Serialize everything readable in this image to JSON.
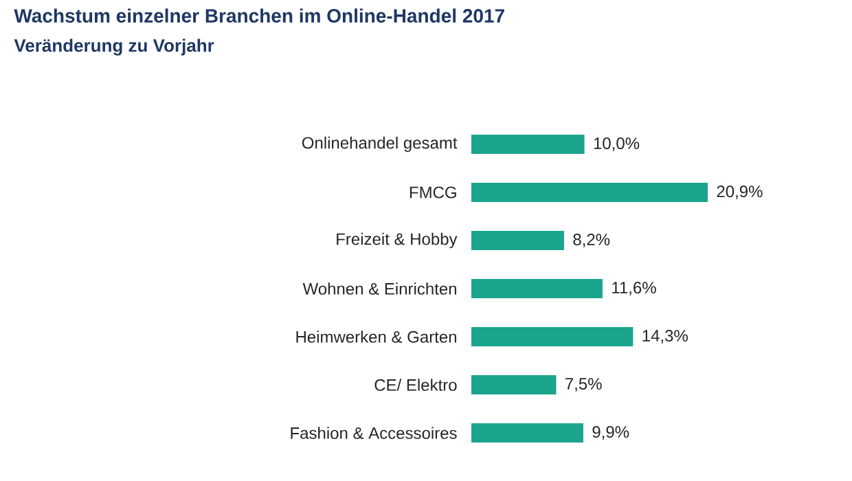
{
  "chart_data": {
    "type": "bar",
    "orientation": "horizontal",
    "title": "Wachstum einzelner Branchen im Online-Handel 2017",
    "subtitle": "Veränderung zu Vorjahr",
    "categories": [
      "Onlinehandel gesamt",
      "FMCG",
      "Freizeit & Hobby",
      "Wohnen &  Einrichten",
      "Heimwerken & Garten",
      "CE/ Elektro",
      "Fashion & Accessoires"
    ],
    "values": [
      10.0,
      20.9,
      8.2,
      11.6,
      14.3,
      7.5,
      9.9
    ],
    "value_labels": [
      "10,0%",
      "20,9%",
      "8,2%",
      "11,6%",
      "14,3%",
      "7,5%",
      "9,9%"
    ],
    "color": "#1aa58c"
  }
}
